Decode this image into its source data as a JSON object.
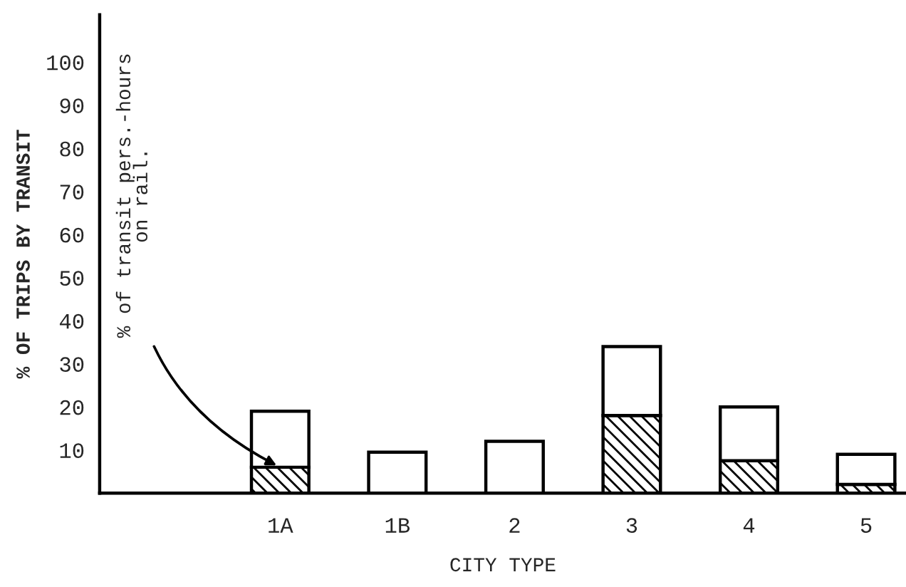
{
  "chart_data": {
    "type": "bar",
    "stacked": true,
    "xlabel": "CITY TYPE",
    "ylabel": "% OF TRIPS BY TRANSIT",
    "categories": [
      "1A",
      "1B",
      "2",
      "3",
      "4",
      "5"
    ],
    "series": [
      {
        "color": "#000000",
        "values": [
          6,
          null,
          null,
          18,
          7.5,
          2
        ]
      },
      {
        "color": "#ffffff",
        "values": [
          13,
          9.5,
          12,
          16,
          12.5,
          7
        ]
      }
    ],
    "ylim": [
      0,
      111
    ],
    "yticks": [
      10,
      20,
      30,
      40,
      50,
      60,
      70,
      80,
      90,
      100
    ],
    "annotations": [
      {
        "text": "% of transit pers.-hours\non rail.",
        "x": "1A",
        "y": 6
      }
    ]
  }
}
